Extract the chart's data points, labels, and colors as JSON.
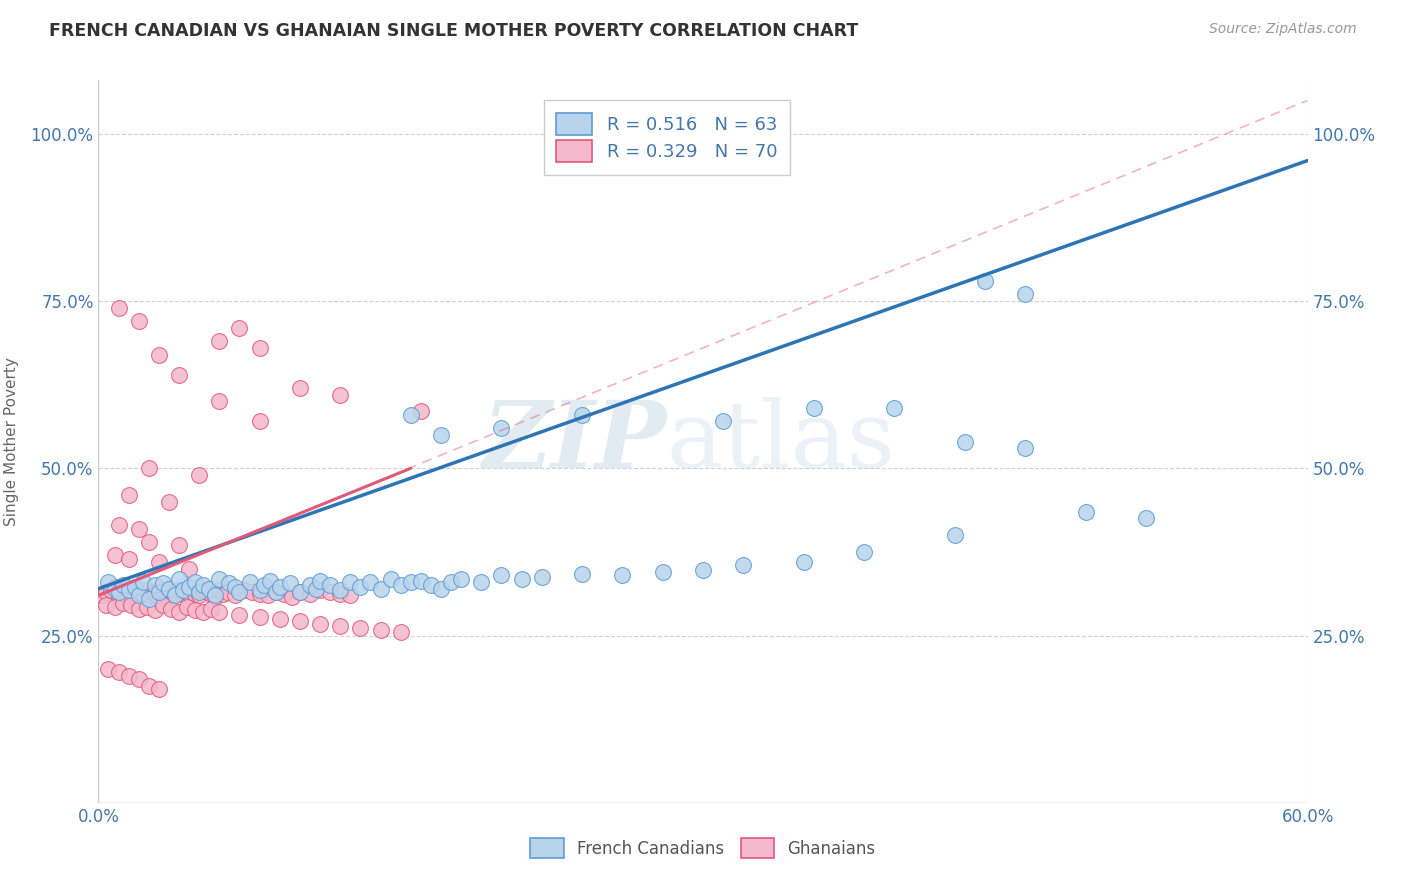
{
  "title": "FRENCH CANADIAN VS GHANAIAN SINGLE MOTHER POVERTY CORRELATION CHART",
  "source": "Source: ZipAtlas.com",
  "ylabel": "Single Mother Poverty",
  "xlim": [
    0.0,
    0.6
  ],
  "ylim": [
    0.0,
    1.08
  ],
  "ytick_vals": [
    0.0,
    0.25,
    0.5,
    0.75,
    1.0
  ],
  "xtick_vals": [
    0.0,
    0.06,
    0.12,
    0.18,
    0.24,
    0.3,
    0.36,
    0.42,
    0.48,
    0.54,
    0.6
  ],
  "french_canadians": {
    "label": "French Canadians",
    "color": "#b8d4ec",
    "edge_color": "#5b9bd5",
    "R": 0.516,
    "N": 63,
    "line_color": "#2e75b6",
    "points_x": [
      0.005,
      0.008,
      0.01,
      0.012,
      0.015,
      0.018,
      0.02,
      0.022,
      0.025,
      0.028,
      0.03,
      0.032,
      0.035,
      0.038,
      0.04,
      0.042,
      0.045,
      0.048,
      0.05,
      0.052,
      0.055,
      0.058,
      0.06,
      0.065,
      0.068,
      0.07,
      0.075,
      0.08,
      0.082,
      0.085,
      0.088,
      0.09,
      0.095,
      0.1,
      0.105,
      0.108,
      0.11,
      0.115,
      0.12,
      0.125,
      0.13,
      0.135,
      0.14,
      0.145,
      0.15,
      0.155,
      0.16,
      0.165,
      0.17,
      0.175,
      0.18,
      0.19,
      0.2,
      0.21,
      0.22,
      0.24,
      0.26,
      0.28,
      0.3,
      0.32,
      0.35,
      0.38,
      0.425
    ],
    "points_y": [
      0.33,
      0.32,
      0.315,
      0.325,
      0.318,
      0.322,
      0.31,
      0.33,
      0.305,
      0.325,
      0.315,
      0.328,
      0.32,
      0.31,
      0.335,
      0.318,
      0.322,
      0.33,
      0.315,
      0.325,
      0.32,
      0.31,
      0.335,
      0.328,
      0.322,
      0.315,
      0.33,
      0.318,
      0.325,
      0.332,
      0.315,
      0.322,
      0.328,
      0.315,
      0.325,
      0.32,
      0.332,
      0.325,
      0.318,
      0.33,
      0.322,
      0.33,
      0.32,
      0.335,
      0.325,
      0.33,
      0.332,
      0.325,
      0.32,
      0.33,
      0.335,
      0.33,
      0.34,
      0.335,
      0.338,
      0.342,
      0.34,
      0.345,
      0.348,
      0.355,
      0.36,
      0.375,
      0.4
    ],
    "trendline_x": [
      0.0,
      0.6
    ],
    "trendline_y": [
      0.32,
      0.96
    ]
  },
  "ghanaians": {
    "label": "Ghanaians",
    "color": "#f4b8cc",
    "edge_color": "#e05a7a",
    "R": 0.329,
    "N": 70,
    "line_color": "#e05a7a",
    "line_style": "solid",
    "points_x": [
      0.002,
      0.004,
      0.006,
      0.008,
      0.01,
      0.012,
      0.014,
      0.016,
      0.018,
      0.02,
      0.022,
      0.024,
      0.026,
      0.028,
      0.03,
      0.032,
      0.034,
      0.036,
      0.038,
      0.04,
      0.042,
      0.044,
      0.046,
      0.048,
      0.05,
      0.052,
      0.054,
      0.056,
      0.058,
      0.06,
      0.062,
      0.064,
      0.068,
      0.072,
      0.076,
      0.08,
      0.084,
      0.088,
      0.092,
      0.096,
      0.1,
      0.105,
      0.11,
      0.115,
      0.12,
      0.125,
      0.004,
      0.008,
      0.012,
      0.016,
      0.02,
      0.024,
      0.028,
      0.032,
      0.036,
      0.04,
      0.044,
      0.048,
      0.052,
      0.056,
      0.06,
      0.07,
      0.08,
      0.09,
      0.1,
      0.11,
      0.12,
      0.13,
      0.14,
      0.15
    ],
    "points_y": [
      0.31,
      0.315,
      0.318,
      0.322,
      0.31,
      0.315,
      0.312,
      0.308,
      0.32,
      0.315,
      0.312,
      0.318,
      0.31,
      0.315,
      0.32,
      0.312,
      0.308,
      0.315,
      0.31,
      0.318,
      0.312,
      0.315,
      0.308,
      0.312,
      0.31,
      0.318,
      0.315,
      0.312,
      0.308,
      0.318,
      0.312,
      0.315,
      0.31,
      0.318,
      0.315,
      0.312,
      0.31,
      0.315,
      0.312,
      0.308,
      0.315,
      0.312,
      0.318,
      0.315,
      0.312,
      0.31,
      0.295,
      0.292,
      0.298,
      0.295,
      0.29,
      0.292,
      0.288,
      0.295,
      0.29,
      0.285,
      0.292,
      0.288,
      0.285,
      0.29,
      0.285,
      0.28,
      0.278,
      0.275,
      0.272,
      0.268,
      0.265,
      0.262,
      0.258,
      0.255
    ],
    "trendline_x": [
      0.0,
      0.155
    ],
    "trendline_y": [
      0.31,
      0.5
    ]
  },
  "outliers_fc": [
    [
      0.155,
      0.58
    ],
    [
      0.17,
      0.55
    ],
    [
      0.2,
      0.56
    ],
    [
      0.24,
      0.58
    ],
    [
      0.31,
      0.57
    ],
    [
      0.355,
      0.59
    ],
    [
      0.395,
      0.59
    ],
    [
      0.43,
      0.54
    ],
    [
      0.46,
      0.53
    ],
    [
      0.49,
      0.435
    ],
    [
      0.52,
      0.425
    ],
    [
      0.44,
      0.78
    ],
    [
      0.46,
      0.76
    ]
  ],
  "outliers_gh": [
    [
      0.06,
      0.69
    ],
    [
      0.07,
      0.71
    ],
    [
      0.08,
      0.68
    ],
    [
      0.1,
      0.62
    ],
    [
      0.12,
      0.61
    ],
    [
      0.16,
      0.585
    ],
    [
      0.01,
      0.74
    ],
    [
      0.02,
      0.72
    ],
    [
      0.03,
      0.67
    ],
    [
      0.04,
      0.64
    ],
    [
      0.06,
      0.6
    ],
    [
      0.08,
      0.57
    ],
    [
      0.025,
      0.5
    ],
    [
      0.05,
      0.49
    ],
    [
      0.015,
      0.46
    ],
    [
      0.035,
      0.45
    ],
    [
      0.01,
      0.415
    ],
    [
      0.02,
      0.41
    ],
    [
      0.025,
      0.39
    ],
    [
      0.04,
      0.385
    ],
    [
      0.008,
      0.37
    ],
    [
      0.015,
      0.365
    ],
    [
      0.03,
      0.36
    ],
    [
      0.045,
      0.35
    ],
    [
      0.005,
      0.2
    ],
    [
      0.01,
      0.195
    ],
    [
      0.015,
      0.19
    ],
    [
      0.02,
      0.185
    ],
    [
      0.025,
      0.175
    ],
    [
      0.03,
      0.17
    ]
  ],
  "title_color": "#333333",
  "axis_color": "#4477aa",
  "grid_color": "#cccccc",
  "watermark_zip": "ZIP",
  "watermark_atlas": "atlas",
  "legend": {
    "fc_color": "#b8d4ec",
    "fc_edge": "#5b9bd5",
    "gh_color": "#f4b8cc",
    "gh_edge": "#e05a7a"
  }
}
